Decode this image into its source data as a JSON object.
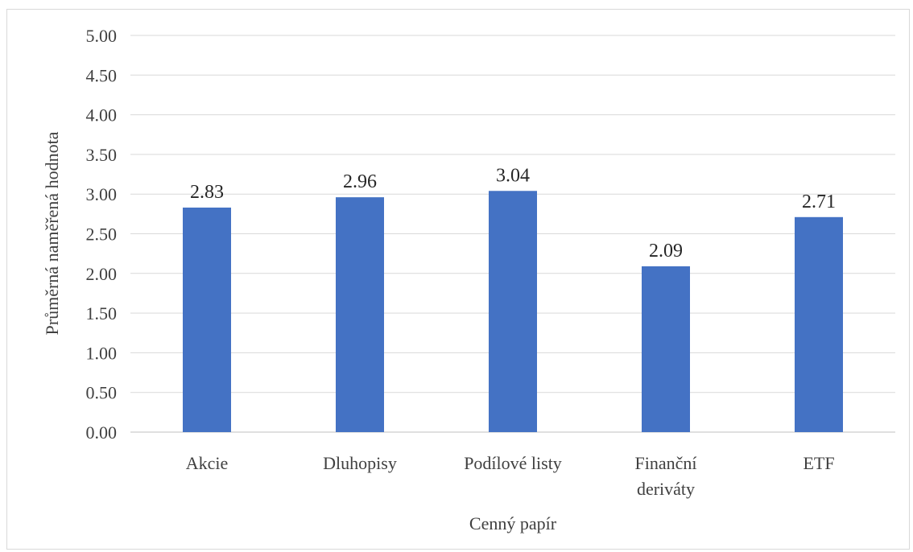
{
  "chart_data": {
    "type": "bar",
    "categories": [
      [
        "Akcie"
      ],
      [
        "Dluhopisy"
      ],
      [
        "Podílové listy"
      ],
      [
        "Finanční",
        "deriváty"
      ],
      [
        "ETF"
      ]
    ],
    "values": [
      2.83,
      2.96,
      3.04,
      2.09,
      2.71
    ],
    "value_labels": [
      "2.83",
      "2.96",
      "3.04",
      "2.09",
      "2.71"
    ],
    "title": "",
    "xlabel": "Cenný papír",
    "ylabel": "Průměrná naměřená hodnota",
    "ylim": [
      0,
      5
    ],
    "yticks": [
      "0.00",
      "0.50",
      "1.00",
      "1.50",
      "2.00",
      "2.50",
      "3.00",
      "3.50",
      "4.00",
      "4.50",
      "5.00"
    ],
    "grid": true,
    "legend": "none",
    "bar_color": "#4472c4",
    "grid_color": "#d9d9d9"
  }
}
